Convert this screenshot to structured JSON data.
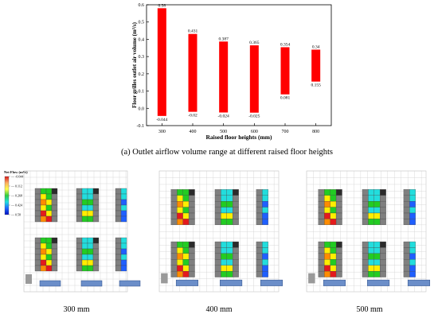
{
  "chart_data": {
    "type": "bar",
    "categories": [
      "300",
      "400",
      "500",
      "600",
      "700",
      "800"
    ],
    "series": [
      {
        "values_top": [
          0.58,
          0.431,
          0.387,
          0.365,
          0.354,
          0.34
        ],
        "values_bottom": [
          -0.044,
          -0.02,
          -0.024,
          -0.025,
          0.081,
          0.155
        ]
      }
    ],
    "bar_color": "#ff0000",
    "xlabel": "Raised floor heights (mm)",
    "ylabel": "Floor grilles outlet air volume (m³/s)",
    "ylim": [
      -0.1,
      0.6
    ],
    "yticks": [
      "-0.1",
      "0.0",
      "0.1",
      "0.2",
      "0.3",
      "0.4",
      "0.5",
      "0.6"
    ],
    "grid": false
  },
  "caption": "(a) Outlet airflow volume range at different raised floor heights",
  "legend": {
    "title": "Net Flow (m³/s)",
    "ticks": [
      "-0.044",
      "0.112",
      "0.268",
      "0.424",
      "0.58"
    ],
    "colors": [
      "#d7191c",
      "#fdae61",
      "#ffff4c",
      "#2ecc40",
      "#1ee0e0",
      "#1e64ff",
      "#0010c0"
    ]
  },
  "panels": [
    {
      "label": "300 mm"
    },
    {
      "label": "400 mm"
    },
    {
      "label": "500 mm"
    }
  ]
}
